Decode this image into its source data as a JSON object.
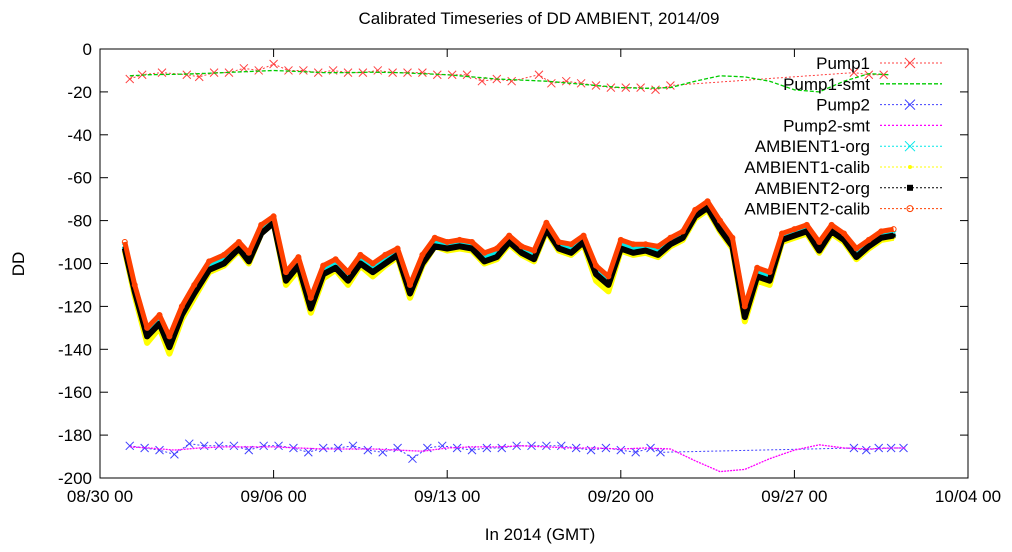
{
  "chart_data": {
    "type": "line",
    "title": "Calibrated Timeseries of DD AMBIENT, 2014/09",
    "xlabel": "In 2014 (GMT)",
    "ylabel": "DD",
    "x_unit": "days since 08/30 00",
    "xlim": [
      0,
      35
    ],
    "ylim": [
      -200,
      0
    ],
    "yticks": [
      0,
      -20,
      -40,
      -60,
      -80,
      -100,
      -120,
      -140,
      -160,
      -180,
      -200
    ],
    "xticks": [
      {
        "x": 0,
        "label": "08/30 00"
      },
      {
        "x": 7,
        "label": "09/06 00"
      },
      {
        "x": 14,
        "label": "09/13 00"
      },
      {
        "x": 21,
        "label": "09/20 00"
      },
      {
        "x": 28,
        "label": "09/27 00"
      },
      {
        "x": 35,
        "label": "10/04 00"
      }
    ],
    "grid": false,
    "legend_position": "top-right",
    "series": [
      {
        "name": "Pump1",
        "color": "#ff4040",
        "marker": "x",
        "line": "dotted",
        "x": [
          1.2,
          1.7,
          2.5,
          3.5,
          4.0,
          4.6,
          5.2,
          5.8,
          6.4,
          7.0,
          7.6,
          8.2,
          8.8,
          9.4,
          10.0,
          10.6,
          11.2,
          11.8,
          12.4,
          13.0,
          13.6,
          14.2,
          14.8,
          15.4,
          16.0,
          16.6,
          17.7,
          18.2,
          18.8,
          19.4,
          20.0,
          20.6,
          21.2,
          21.8,
          22.4,
          23.0,
          30.4,
          31.0,
          31.6
        ],
        "values": [
          -14,
          -12,
          -11,
          -12,
          -13,
          -11,
          -11,
          -9,
          -10,
          -7,
          -10,
          -10,
          -11,
          -10,
          -11,
          -11,
          -10,
          -11,
          -11,
          -11,
          -12,
          -12,
          -12,
          -15,
          -14,
          -15,
          -12,
          -16,
          -15,
          -16,
          -17,
          -18,
          -18,
          -18,
          -19,
          -17,
          -11,
          -12,
          -12
        ]
      },
      {
        "name": "Pump1-smt",
        "color": "#00cc00",
        "marker": "none",
        "line": "dashed",
        "x": [
          1.2,
          2,
          3,
          4,
          5,
          6,
          7,
          8,
          9,
          10,
          11,
          12,
          13,
          14,
          15,
          16,
          17,
          18,
          19,
          20,
          21,
          22,
          23,
          24,
          25,
          26,
          27,
          28,
          29,
          30,
          31,
          31.8
        ],
        "values": [
          -12.5,
          -12,
          -11.8,
          -11.5,
          -11,
          -10.5,
          -10,
          -10.5,
          -11,
          -11,
          -10.8,
          -11,
          -11.5,
          -12,
          -13,
          -14,
          -14.5,
          -15,
          -16,
          -17,
          -18,
          -18.3,
          -18,
          -15,
          -12.5,
          -13,
          -15,
          -19,
          -20,
          -15,
          -11.5,
          -12
        ]
      },
      {
        "name": "Pump2",
        "color": "#4040ff",
        "marker": "x",
        "line": "dotted",
        "x": [
          1.2,
          1.8,
          2.4,
          3.0,
          3.6,
          4.2,
          4.8,
          5.4,
          6.0,
          6.6,
          7.2,
          7.8,
          8.4,
          9.0,
          9.6,
          10.2,
          10.8,
          11.4,
          12.0,
          12.6,
          13.2,
          13.8,
          14.4,
          15.0,
          15.6,
          16.2,
          16.8,
          17.4,
          18.0,
          18.6,
          19.2,
          19.8,
          20.4,
          21.0,
          21.6,
          22.2,
          22.6,
          30.4,
          30.9,
          31.4,
          31.9,
          32.4
        ],
        "values": [
          -185,
          -186,
          -187,
          -189,
          -184,
          -185,
          -185,
          -185,
          -187,
          -185,
          -185,
          -186,
          -188,
          -186,
          -186,
          -185,
          -187,
          -188,
          -186,
          -191,
          -186,
          -185,
          -186,
          -187,
          -186,
          -186,
          -185,
          -185,
          -185,
          -185,
          -186,
          -187,
          -186,
          -187,
          -188,
          -186,
          -188,
          -186,
          -187,
          -186,
          -186,
          -186
        ]
      },
      {
        "name": "Pump2-smt",
        "color": "#ff00ff",
        "marker": "none",
        "line": "dotted",
        "x": [
          1.2,
          2,
          3,
          4,
          5,
          6,
          7,
          8,
          9,
          10,
          11,
          12,
          13,
          14,
          15,
          16,
          17,
          18,
          19,
          20,
          21,
          22,
          23,
          24,
          25,
          26,
          27,
          28,
          29,
          30,
          31,
          32,
          32.5
        ],
        "values": [
          -185.5,
          -186,
          -187,
          -186,
          -185.5,
          -185.5,
          -185.5,
          -186,
          -186.5,
          -186.5,
          -186.5,
          -187,
          -187.5,
          -186,
          -185.5,
          -185.5,
          -185,
          -185.5,
          -186,
          -186,
          -186.5,
          -186,
          -186.5,
          -192,
          -197,
          -196,
          -191,
          -187,
          -184.5,
          -186,
          -186.5,
          -186,
          -186
        ]
      },
      {
        "name": "AMBIENT1-org",
        "color": "#00e8e8",
        "marker": "x",
        "line": "dotted",
        "x": [
          1.0,
          1.4,
          1.9,
          2.4,
          2.8,
          3.3,
          3.8,
          4.4,
          5.0,
          5.6,
          6.0,
          6.5,
          7.0,
          7.5,
          8.0,
          8.5,
          9.0,
          9.5,
          10.0,
          10.5,
          11.0,
          11.5,
          12.0,
          12.5,
          13.0,
          13.5,
          14.0,
          14.5,
          15.0,
          15.5,
          16.0,
          16.5,
          17.0,
          17.5,
          18.0,
          18.5,
          19.0,
          19.5,
          20.0,
          20.5,
          21.0,
          21.5,
          22.0,
          22.5,
          23.0,
          23.5,
          24.0,
          24.5,
          25.0,
          25.5,
          26.0,
          26.5,
          27.0,
          27.5,
          28.0,
          28.5,
          29.0,
          29.5,
          30.0,
          30.5,
          31.0,
          31.5,
          32.0
        ],
        "values": [
          -92,
          -112,
          -132,
          -126,
          -136,
          -122,
          -112,
          -101,
          -98,
          -92,
          -97,
          -84,
          -80,
          -106,
          -99,
          -118,
          -103,
          -100,
          -106,
          -98,
          -102,
          -98,
          -95,
          -112,
          -98,
          -90,
          -92,
          -91,
          -92,
          -97,
          -95,
          -89,
          -94,
          -96,
          -83,
          -92,
          -93,
          -89,
          -103,
          -108,
          -91,
          -93,
          -93,
          -94,
          -90,
          -87,
          -77,
          -73,
          -82,
          -90,
          -122,
          -104,
          -106,
          -88,
          -86,
          -84,
          -92,
          -84,
          -88,
          -95,
          -91,
          -87,
          -86
        ]
      },
      {
        "name": "AMBIENT1-calib",
        "color": "#ffff00",
        "marker": "dot",
        "line": "dotted",
        "x": [
          1.0,
          1.4,
          1.9,
          2.4,
          2.8,
          3.3,
          3.8,
          4.4,
          5.0,
          5.6,
          6.0,
          6.5,
          7.0,
          7.5,
          8.0,
          8.5,
          9.0,
          9.5,
          10.0,
          10.5,
          11.0,
          11.5,
          12.0,
          12.5,
          13.0,
          13.5,
          14.0,
          14.5,
          15.0,
          15.5,
          16.0,
          16.5,
          17.0,
          17.5,
          18.0,
          18.5,
          19.0,
          19.5,
          20.0,
          20.5,
          21.0,
          21.5,
          22.0,
          22.5,
          23.0,
          23.5,
          24.0,
          24.5,
          25.0,
          25.5,
          26.0,
          26.5,
          27.0,
          27.5,
          28.0,
          28.5,
          29.0,
          29.5,
          30.0,
          30.5,
          31.0,
          31.5,
          32.0
        ],
        "values": [
          -94,
          -115,
          -137,
          -130,
          -142,
          -126,
          -116,
          -104,
          -101,
          -94,
          -100,
          -86,
          -81,
          -110,
          -103,
          -123,
          -107,
          -103,
          -110,
          -101,
          -106,
          -101,
          -97,
          -116,
          -101,
          -92,
          -94,
          -93,
          -94,
          -100,
          -98,
          -91,
          -96,
          -99,
          -85,
          -94,
          -96,
          -91,
          -108,
          -113,
          -94,
          -96,
          -95,
          -97,
          -92,
          -89,
          -79,
          -75,
          -85,
          -93,
          -127,
          -108,
          -110,
          -90,
          -88,
          -86,
          -95,
          -86,
          -90,
          -98,
          -93,
          -89,
          -88
        ]
      },
      {
        "name": "AMBIENT2-org",
        "color": "#000000",
        "marker": "square",
        "line": "dotted",
        "x": [
          1.0,
          1.4,
          1.9,
          2.4,
          2.8,
          3.3,
          3.8,
          4.4,
          5.0,
          5.6,
          6.0,
          6.5,
          7.0,
          7.5,
          8.0,
          8.5,
          9.0,
          9.5,
          10.0,
          10.5,
          11.0,
          11.5,
          12.0,
          12.5,
          13.0,
          13.5,
          14.0,
          14.5,
          15.0,
          15.5,
          16.0,
          16.5,
          17.0,
          17.5,
          18.0,
          18.5,
          19.0,
          19.5,
          20.0,
          20.5,
          21.0,
          21.5,
          22.0,
          22.5,
          23.0,
          23.5,
          24.0,
          24.5,
          25.0,
          25.5,
          26.0,
          26.5,
          27.0,
          27.5,
          28.0,
          28.5,
          29.0,
          29.5,
          30.0,
          30.5,
          31.0,
          31.5,
          32.0
        ],
        "values": [
          -93,
          -113,
          -134,
          -128,
          -139,
          -124,
          -114,
          -103,
          -100,
          -93,
          -99,
          -86,
          -81,
          -108,
          -101,
          -121,
          -105,
          -102,
          -108,
          -100,
          -104,
          -100,
          -96,
          -114,
          -100,
          -92,
          -93,
          -92,
          -93,
          -99,
          -97,
          -90,
          -95,
          -98,
          -84,
          -93,
          -95,
          -90,
          -105,
          -110,
          -93,
          -95,
          -94,
          -96,
          -91,
          -88,
          -78,
          -74,
          -84,
          -92,
          -125,
          -106,
          -108,
          -89,
          -87,
          -85,
          -94,
          -85,
          -89,
          -97,
          -92,
          -88,
          -87
        ]
      },
      {
        "name": "AMBIENT2-calib",
        "color": "#ff4000",
        "marker": "circle",
        "line": "dotted",
        "x": [
          1.0,
          1.4,
          1.9,
          2.4,
          2.8,
          3.3,
          3.8,
          4.4,
          5.0,
          5.6,
          6.0,
          6.5,
          7.0,
          7.5,
          8.0,
          8.5,
          9.0,
          9.5,
          10.0,
          10.5,
          11.0,
          11.5,
          12.0,
          12.5,
          13.0,
          13.5,
          14.0,
          14.5,
          15.0,
          15.5,
          16.0,
          16.5,
          17.0,
          17.5,
          18.0,
          18.5,
          19.0,
          19.5,
          20.0,
          20.5,
          21.0,
          21.5,
          22.0,
          22.5,
          23.0,
          23.5,
          24.0,
          24.5,
          25.0,
          25.5,
          26.0,
          26.5,
          27.0,
          27.5,
          28.0,
          28.5,
          29.0,
          29.5,
          30.0,
          30.5,
          31.0,
          31.5,
          32.0
        ],
        "values": [
          -90,
          -110,
          -130,
          -124,
          -134,
          -120,
          -110,
          -99,
          -96,
          -90,
          -95,
          -82,
          -78,
          -104,
          -97,
          -116,
          -101,
          -98,
          -104,
          -96,
          -100,
          -96,
          -93,
          -110,
          -96,
          -88,
          -90,
          -89,
          -90,
          -95,
          -93,
          -87,
          -92,
          -94,
          -81,
          -90,
          -91,
          -87,
          -101,
          -106,
          -89,
          -91,
          -91,
          -92,
          -88,
          -85,
          -75,
          -71,
          -80,
          -88,
          -120,
          -102,
          -104,
          -86,
          -84,
          -82,
          -90,
          -82,
          -86,
          -93,
          -89,
          -85,
          -84
        ]
      }
    ]
  }
}
